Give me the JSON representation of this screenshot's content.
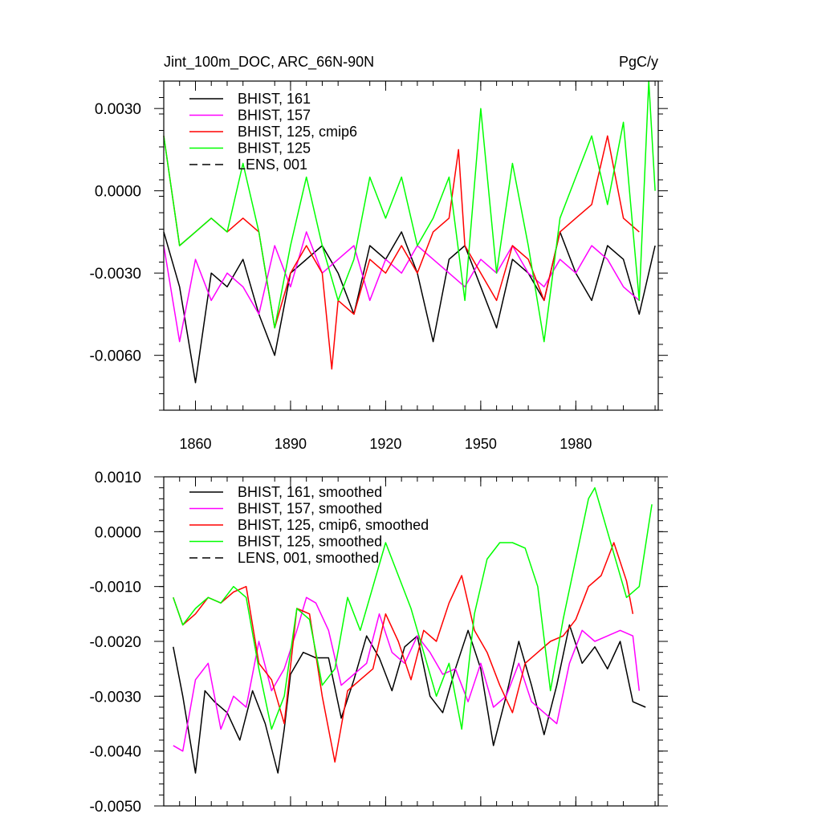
{
  "chart_data": [
    {
      "type": "line",
      "title": "Jint_100m_DOC, ARC_66N-90N",
      "units": "PgC/y",
      "xlabel": "",
      "ylabel": "",
      "xlim": [
        1850,
        2006
      ],
      "ylim": [
        -0.008,
        0.004
      ],
      "xticks": [
        1860,
        1890,
        1920,
        1950,
        1980
      ],
      "xtick_labels": [
        "1860",
        "1890",
        "1920",
        "1950",
        "1980"
      ],
      "yticks": [
        0.003,
        0.0,
        -0.003,
        -0.006
      ],
      "ytick_labels": [
        "0.0030",
        "0.0000",
        "-0.0030",
        "-0.0060"
      ],
      "legend_position": "top-left",
      "series": [
        {
          "name": "BHIST, 161",
          "color": "#000000",
          "dash": "solid",
          "x": [
            1850,
            1855,
            1860,
            1865,
            1870,
            1875,
            1880,
            1885,
            1890,
            1895,
            1900,
            1905,
            1910,
            1915,
            1920,
            1925,
            1930,
            1935,
            1940,
            1945,
            1950,
            1955,
            1960,
            1965,
            1970,
            1975,
            1980,
            1985,
            1990,
            1995,
            2000,
            2005
          ],
          "values": [
            -0.0015,
            -0.0035,
            -0.007,
            -0.003,
            -0.0035,
            -0.0025,
            -0.0045,
            -0.006,
            -0.003,
            -0.0025,
            -0.002,
            -0.003,
            -0.0045,
            -0.002,
            -0.0025,
            -0.0015,
            -0.003,
            -0.0055,
            -0.0025,
            -0.002,
            -0.0035,
            -0.005,
            -0.0025,
            -0.003,
            -0.004,
            -0.0015,
            -0.003,
            -0.004,
            -0.002,
            -0.0025,
            -0.0045,
            -0.002
          ]
        },
        {
          "name": "BHIST, 157",
          "color": "#ff00ff",
          "dash": "solid",
          "x": [
            1850,
            1855,
            1860,
            1865,
            1870,
            1875,
            1880,
            1885,
            1890,
            1895,
            1900,
            1905,
            1910,
            1915,
            1920,
            1925,
            1930,
            1935,
            1940,
            1945,
            1950,
            1955,
            1960,
            1965,
            1970,
            1975,
            1980,
            1985,
            1990,
            1995,
            2000
          ],
          "values": [
            -0.002,
            -0.0055,
            -0.0025,
            -0.004,
            -0.003,
            -0.0035,
            -0.0045,
            -0.002,
            -0.0035,
            -0.0015,
            -0.003,
            -0.0025,
            -0.002,
            -0.004,
            -0.0025,
            -0.003,
            -0.002,
            -0.0025,
            -0.003,
            -0.0035,
            -0.0025,
            -0.003,
            -0.002,
            -0.003,
            -0.0035,
            -0.0025,
            -0.003,
            -0.002,
            -0.0025,
            -0.0035,
            -0.004
          ]
        },
        {
          "name": "BHIST, 125, cmip6",
          "color": "#ff0000",
          "dash": "solid",
          "x": [
            1850,
            1855,
            1860,
            1865,
            1870,
            1875,
            1880,
            1885,
            1890,
            1895,
            1900,
            1903,
            1905,
            1910,
            1915,
            1920,
            1925,
            1930,
            1935,
            1940,
            1943,
            1945,
            1950,
            1955,
            1960,
            1965,
            1970,
            1975,
            1980,
            1985,
            1990,
            1995,
            2000
          ],
          "values": [
            0.002,
            -0.002,
            -0.0015,
            -0.001,
            -0.0015,
            -0.001,
            -0.0015,
            -0.005,
            -0.003,
            -0.002,
            -0.003,
            -0.0065,
            -0.004,
            -0.0045,
            -0.0025,
            -0.003,
            -0.002,
            -0.003,
            -0.0015,
            -0.001,
            0.0015,
            -0.002,
            -0.003,
            -0.004,
            -0.002,
            -0.0025,
            -0.004,
            -0.0015,
            -0.001,
            -0.0005,
            0.002,
            -0.001,
            -0.0015
          ]
        },
        {
          "name": "BHIST, 125",
          "color": "#00ff00",
          "dash": "solid",
          "x": [
            1850,
            1855,
            1860,
            1865,
            1870,
            1875,
            1880,
            1885,
            1890,
            1895,
            1900,
            1905,
            1910,
            1915,
            1920,
            1925,
            1930,
            1935,
            1940,
            1945,
            1950,
            1955,
            1960,
            1965,
            1970,
            1975,
            1980,
            1985,
            1990,
            1995,
            2000,
            2003,
            2005
          ],
          "values": [
            0.002,
            -0.002,
            -0.0015,
            -0.001,
            -0.0015,
            0.001,
            -0.0015,
            -0.005,
            -0.002,
            0.0005,
            -0.002,
            -0.004,
            -0.0025,
            0.0005,
            -0.001,
            0.0005,
            -0.002,
            -0.001,
            0.0005,
            -0.004,
            0.003,
            -0.003,
            0.001,
            -0.002,
            -0.0055,
            -0.001,
            0.0005,
            0.002,
            -0.0005,
            0.0025,
            -0.004,
            0.004,
            0.0
          ]
        },
        {
          "name": "LENS, 001",
          "color": "#000000",
          "dash": "dashed",
          "x": [],
          "values": []
        }
      ]
    },
    {
      "type": "line",
      "title": "",
      "units": "",
      "xlabel": "",
      "ylabel": "",
      "xlim": [
        1850,
        2006
      ],
      "ylim": [
        -0.005,
        0.001
      ],
      "xticks": [
        1860,
        1890,
        1920,
        1950,
        1980
      ],
      "xtick_labels": [],
      "yticks": [
        0.001,
        0.0,
        -0.001,
        -0.002,
        -0.003,
        -0.004,
        -0.005
      ],
      "ytick_labels": [
        "0.0010",
        "0.0000",
        "-0.0010",
        "-0.0020",
        "-0.0030",
        "-0.0040",
        "-0.0050"
      ],
      "legend_position": "top-left",
      "series": [
        {
          "name": "BHIST, 161, smoothed",
          "color": "#000000",
          "dash": "solid",
          "x": [
            1853,
            1856,
            1860,
            1863,
            1866,
            1870,
            1874,
            1878,
            1882,
            1886,
            1888,
            1890,
            1894,
            1898,
            1902,
            1906,
            1910,
            1914,
            1918,
            1922,
            1926,
            1930,
            1934,
            1938,
            1942,
            1946,
            1950,
            1954,
            1958,
            1962,
            1966,
            1970,
            1974,
            1978,
            1982,
            1986,
            1990,
            1994,
            1998,
            2002
          ],
          "values": [
            -0.0021,
            -0.003,
            -0.0044,
            -0.0029,
            -0.0031,
            -0.0033,
            -0.0038,
            -0.0029,
            -0.0035,
            -0.0044,
            -0.0036,
            -0.0026,
            -0.0022,
            -0.0023,
            -0.0023,
            -0.0034,
            -0.0027,
            -0.0019,
            -0.0023,
            -0.0029,
            -0.0021,
            -0.0019,
            -0.003,
            -0.0033,
            -0.0025,
            -0.0018,
            -0.0025,
            -0.0039,
            -0.003,
            -0.002,
            -0.0028,
            -0.0037,
            -0.0028,
            -0.0017,
            -0.0024,
            -0.0021,
            -0.0025,
            -0.002,
            -0.0031,
            -0.0032
          ]
        },
        {
          "name": "BHIST, 157, smoothed",
          "color": "#ff00ff",
          "dash": "solid",
          "x": [
            1853,
            1856,
            1860,
            1864,
            1868,
            1872,
            1876,
            1880,
            1884,
            1888,
            1892,
            1895,
            1898,
            1902,
            1906,
            1910,
            1914,
            1918,
            1922,
            1926,
            1930,
            1934,
            1938,
            1942,
            1946,
            1950,
            1954,
            1958,
            1962,
            1966,
            1970,
            1974,
            1978,
            1982,
            1986,
            1990,
            1994,
            1998,
            2000
          ],
          "values": [
            -0.0039,
            -0.004,
            -0.0027,
            -0.0024,
            -0.0036,
            -0.003,
            -0.0032,
            -0.002,
            -0.0029,
            -0.0025,
            -0.0018,
            -0.0012,
            -0.0013,
            -0.0018,
            -0.0028,
            -0.0026,
            -0.0024,
            -0.0015,
            -0.0022,
            -0.0024,
            -0.0019,
            -0.0022,
            -0.0026,
            -0.0025,
            -0.0031,
            -0.0024,
            -0.0032,
            -0.003,
            -0.0024,
            -0.0031,
            -0.0033,
            -0.0035,
            -0.0024,
            -0.0018,
            -0.002,
            -0.0019,
            -0.0018,
            -0.0019,
            -0.0029
          ]
        },
        {
          "name": "BHIST, 125, cmip6, smoothed",
          "color": "#ff0000",
          "dash": "solid",
          "x": [
            1853,
            1856,
            1860,
            1864,
            1868,
            1872,
            1876,
            1880,
            1884,
            1888,
            1892,
            1896,
            1900,
            1904,
            1908,
            1912,
            1916,
            1920,
            1924,
            1928,
            1932,
            1936,
            1940,
            1944,
            1948,
            1952,
            1956,
            1960,
            1964,
            1968,
            1972,
            1976,
            1980,
            1984,
            1988,
            1992,
            1996,
            1998
          ],
          "values": [
            -0.0012,
            -0.0017,
            -0.0015,
            -0.0012,
            -0.0013,
            -0.0011,
            -0.001,
            -0.0024,
            -0.0027,
            -0.0035,
            -0.0014,
            -0.0015,
            -0.003,
            -0.0042,
            -0.0029,
            -0.0027,
            -0.0025,
            -0.0015,
            -0.002,
            -0.0027,
            -0.0018,
            -0.002,
            -0.0013,
            -0.0008,
            -0.0018,
            -0.0022,
            -0.0028,
            -0.0033,
            -0.0024,
            -0.0022,
            -0.002,
            -0.0019,
            -0.0016,
            -0.001,
            -0.0008,
            -0.0002,
            -0.0009,
            -0.0015
          ]
        },
        {
          "name": "BHIST, 125, smoothed",
          "color": "#00ff00",
          "dash": "solid",
          "x": [
            1853,
            1856,
            1860,
            1864,
            1868,
            1872,
            1876,
            1880,
            1884,
            1888,
            1892,
            1896,
            1900,
            1904,
            1908,
            1912,
            1916,
            1920,
            1924,
            1928,
            1932,
            1936,
            1940,
            1944,
            1948,
            1952,
            1956,
            1960,
            1964,
            1968,
            1972,
            1976,
            1980,
            1984,
            1986,
            1988,
            1992,
            1996,
            2000,
            2004
          ],
          "values": [
            -0.0012,
            -0.0017,
            -0.0014,
            -0.0012,
            -0.0013,
            -0.001,
            -0.0012,
            -0.0025,
            -0.0036,
            -0.003,
            -0.0014,
            -0.0016,
            -0.0028,
            -0.0025,
            -0.0012,
            -0.0018,
            -0.001,
            -0.0002,
            -0.0008,
            -0.0014,
            -0.0022,
            -0.003,
            -0.0024,
            -0.0036,
            -0.0015,
            -0.0005,
            -0.0002,
            -0.0002,
            -0.0003,
            -0.001,
            -0.0029,
            -0.0016,
            -0.0005,
            0.0006,
            0.0008,
            0.0004,
            -0.0004,
            -0.0012,
            -0.001,
            0.0005
          ]
        },
        {
          "name": "LENS, 001, smoothed",
          "color": "#000000",
          "dash": "dashed",
          "x": [],
          "values": []
        }
      ]
    }
  ]
}
